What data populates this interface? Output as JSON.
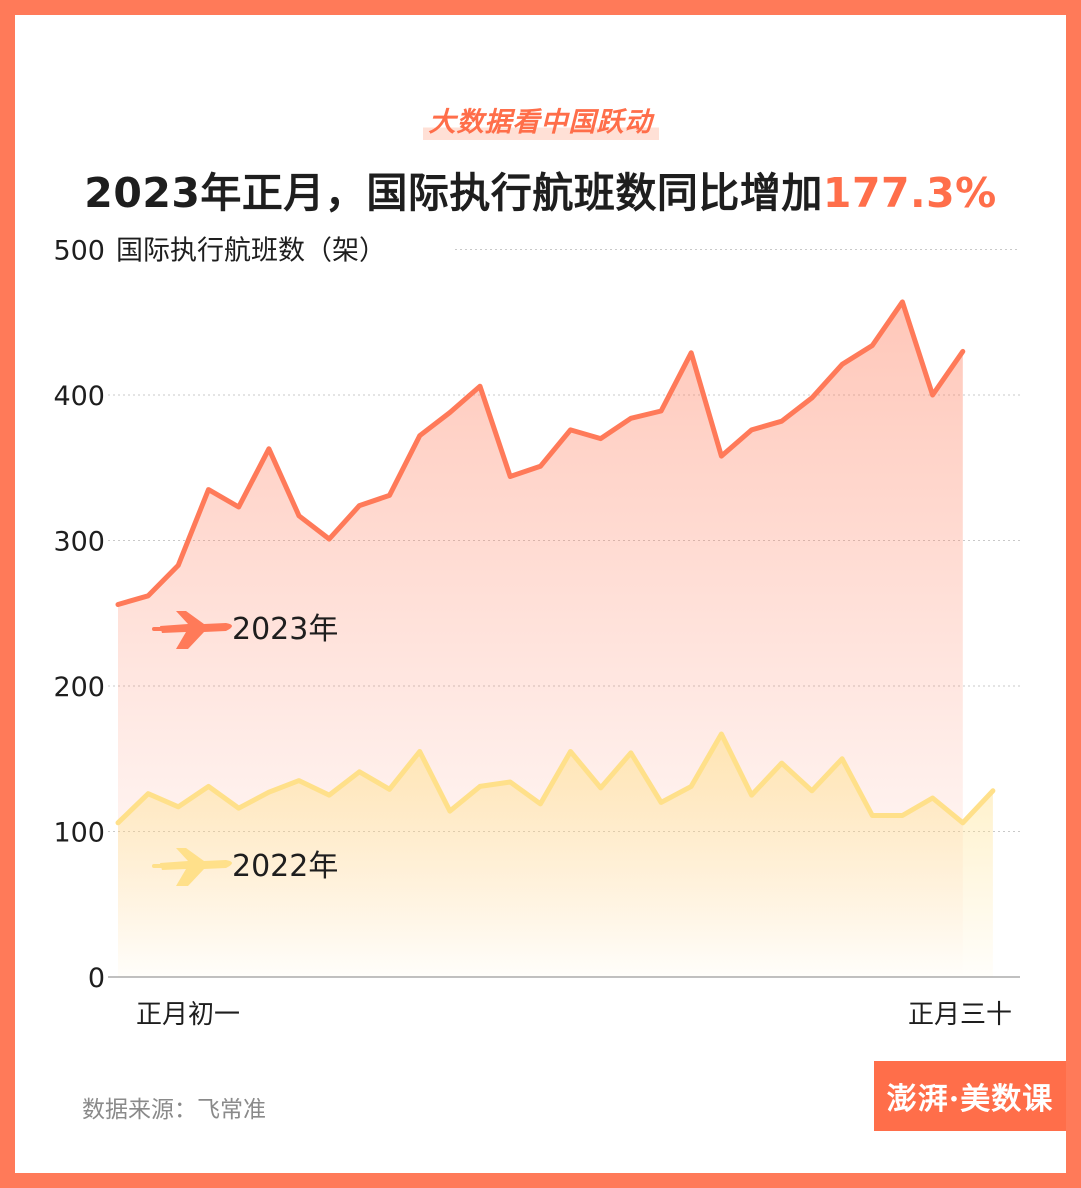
{
  "header": {
    "kicker": "大数据看中国跃动",
    "title_main": "2023年正月，国际执行航班数同比增加",
    "title_highlight": "177.3%"
  },
  "footer": {
    "source": "数据来源：飞常准",
    "logo": "澎湃·美数课"
  },
  "colors": {
    "accent": "#FF6E4A",
    "series_2023": "#FF7A59",
    "series_2022": "#FFE08A",
    "frame": "#FF7A59"
  },
  "chart_data": {
    "type": "area",
    "title": "2023年正月，国际执行航班数同比增加177.3%",
    "ylabel": "国际执行航班数（架）",
    "ylim": [
      0,
      500
    ],
    "yticks": [
      0,
      100,
      200,
      300,
      400,
      500
    ],
    "grid": true,
    "x_start_label": "正月初一",
    "x_end_label": "正月三十",
    "series": [
      {
        "name": "2023年",
        "color": "#FF7A59",
        "values": [
          256,
          262,
          283,
          335,
          323,
          363,
          317,
          301,
          324,
          331,
          372,
          388,
          406,
          344,
          351,
          376,
          370,
          384,
          389,
          429,
          358,
          376,
          382,
          398,
          421,
          434,
          464,
          400,
          430
        ]
      },
      {
        "name": "2022年",
        "color": "#FFE08A",
        "values": [
          106,
          126,
          117,
          131,
          116,
          127,
          135,
          125,
          141,
          129,
          155,
          114,
          131,
          134,
          119,
          155,
          130,
          154,
          120,
          131,
          167,
          125,
          147,
          128,
          150,
          111,
          111,
          123,
          106,
          128
        ]
      }
    ]
  }
}
